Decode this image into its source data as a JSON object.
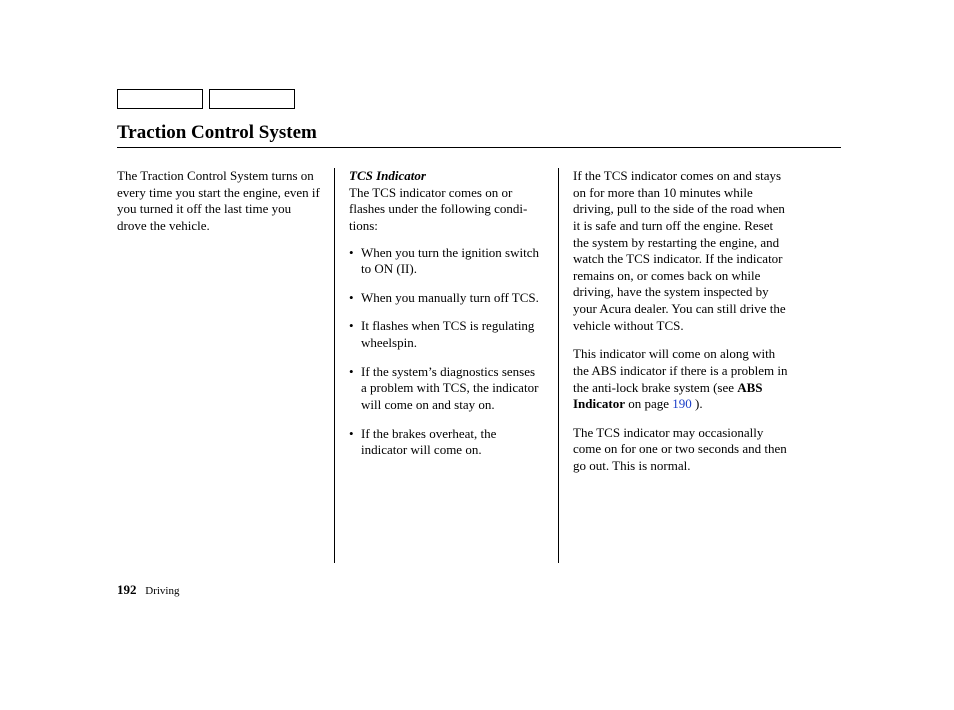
{
  "title": "Traction Control System",
  "col1": {
    "p1": "The Traction Control System turns on every time you start the engine, even if you turned it off the last time you drove the vehicle."
  },
  "col2": {
    "subhead": "TCS Indicator",
    "lead": "The TCS indicator comes on or flashes under the following condi­tions:",
    "bullets": [
      "When you turn the ignition switch to ON (II).",
      "When you manually turn off TCS.",
      "It flashes when TCS is regulating wheelspin.",
      "If the system’s diagnostics senses a problem with TCS, the indicator will come on and stay on.",
      "If the brakes overheat, the indicator will come on."
    ]
  },
  "col3": {
    "p1": "If the TCS indicator comes on and stays on for more than 10 minutes while driving, pull to the side of the road when it is safe and turn off the engine. Reset the system by restarting the engine, and watch the TCS indicator. If the indicator remains on, or comes back on while driving, have the system inspected by your Acura dealer. You can still drive the vehicle without TCS.",
    "p2a": "This indicator will come on along with the ABS indicator if there is a problem in the anti-lock brake system (see ",
    "p2bold": "ABS Indicator",
    "p2b": " on page ",
    "p2link": "190",
    "p2c": " ).",
    "p3": "The TCS indicator may occasionally come on for one or two seconds and then go out. This is normal."
  },
  "footer": {
    "page": "192",
    "section": "Driving"
  }
}
